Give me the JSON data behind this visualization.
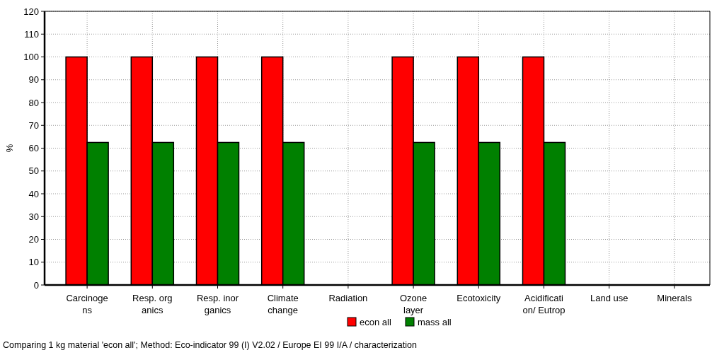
{
  "chart_data": {
    "type": "bar",
    "ylabel": "%",
    "categories": [
      "Carcinoge\nns",
      "Resp. org\nanics",
      "Resp. inor\nganics",
      "Climate\nchange",
      "Radiation",
      "Ozone\nlayer",
      "Ecotoxicity",
      "Acidificati\non/ Eutrop",
      "Land use",
      "Minerals"
    ],
    "series": [
      {
        "name": "econ all",
        "color": "#ff0000",
        "values": [
          100,
          100,
          100,
          100,
          0,
          100,
          100,
          100,
          0,
          0
        ]
      },
      {
        "name": "mass all",
        "color": "#008000",
        "values": [
          62.5,
          62.5,
          62.5,
          62.5,
          0,
          62.5,
          62.5,
          62.5,
          0,
          0
        ]
      }
    ],
    "ylim": [
      0,
      120
    ],
    "yticks": [
      0,
      10,
      20,
      30,
      40,
      50,
      60,
      70,
      80,
      90,
      100,
      110,
      120
    ],
    "grid": true,
    "legend": "bottom",
    "annotations": [
      "Comparing 1 kg material 'econ all';  Method: Eco-indicator 99 (I) V2.02 /  Europe EI 99 I/A / characterization"
    ]
  }
}
